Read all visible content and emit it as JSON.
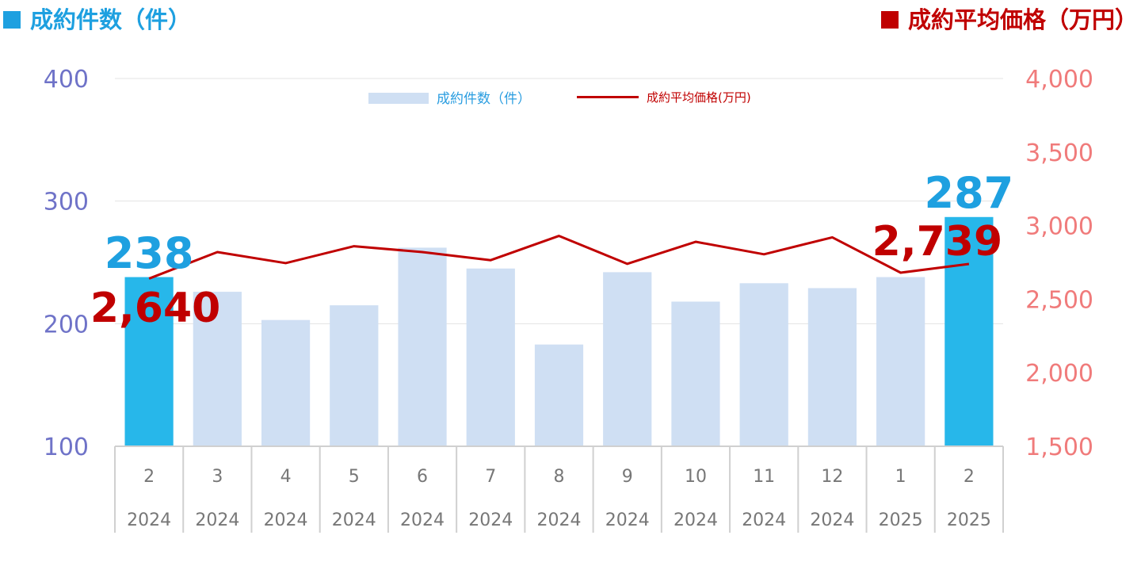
{
  "header": {
    "left_title": "成約件数（件）",
    "right_title": "成約平均価格（万円）"
  },
  "legend": {
    "bar_label": "成約件数（件）",
    "line_label": "成約平均価格(万円)"
  },
  "colors": {
    "bar": "#cfdff3",
    "bar_highlight": "#27b7ea",
    "line": "#c00000",
    "left_axis": "#6f73c8",
    "right_axis": "#f07b7b",
    "count_label": "#1ea0e0",
    "price_label": "#c00000",
    "grid": "#e3e3e3",
    "tick": "#777777",
    "category_border": "#d0d0d0"
  },
  "chart_data": {
    "type": "bar",
    "title": "",
    "months": [
      "2",
      "3",
      "4",
      "5",
      "6",
      "7",
      "8",
      "9",
      "10",
      "11",
      "12",
      "1",
      "2"
    ],
    "years": [
      "2024",
      "2024",
      "2024",
      "2024",
      "2024",
      "2024",
      "2024",
      "2024",
      "2024",
      "2024",
      "2024",
      "2025",
      "2025"
    ],
    "series": [
      {
        "name": "成約件数（件）",
        "type": "bar",
        "axis": "left",
        "values": [
          238,
          226,
          203,
          215,
          262,
          245,
          183,
          242,
          218,
          233,
          229,
          238,
          287
        ],
        "highlight": [
          true,
          false,
          false,
          false,
          false,
          false,
          false,
          false,
          false,
          false,
          false,
          false,
          true
        ]
      },
      {
        "name": "成約平均価格(万円)",
        "type": "line",
        "axis": "right",
        "values": [
          2640,
          2820,
          2745,
          2860,
          2820,
          2765,
          2930,
          2740,
          2890,
          2805,
          2920,
          2680,
          2739
        ]
      }
    ],
    "left_axis": {
      "ylim": [
        100,
        400
      ],
      "ticks": [
        "100",
        "200",
        "300",
        "400"
      ]
    },
    "right_axis": {
      "ylim": [
        1500,
        4000
      ],
      "ticks": [
        "1,500",
        "2,000",
        "2,500",
        "3,000",
        "3,500",
        "4,000"
      ]
    },
    "gridlines": true,
    "legend_position": "top-center",
    "annotations": {
      "first_count": "238",
      "last_count": "287",
      "first_price": "2,640",
      "last_price": "2,739"
    }
  }
}
